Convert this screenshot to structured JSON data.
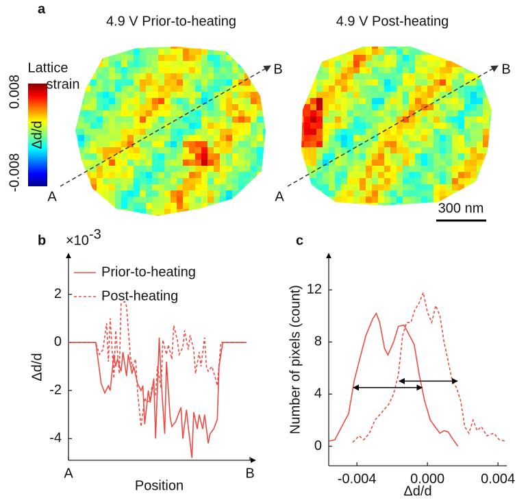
{
  "panel_a": {
    "label": "a",
    "titles": [
      "4.9 V Prior-to-heating",
      "4.9 V Post-heating"
    ],
    "colorbar": {
      "title": [
        "Lattice",
        "strain"
      ],
      "label": "Δd/d",
      "ticks": [
        -0.008,
        0.008
      ]
    },
    "line_ends": [
      "A",
      "B"
    ],
    "scale_bar": "300 nm"
  },
  "chart_data": [
    {
      "type": "line",
      "panel_label": "b",
      "xlabel": "Position",
      "ylabel": "Δd/d",
      "y_offset": {
        "base": "×10",
        "exponent": "-3"
      },
      "legend": "upper left",
      "xlim": [
        0,
        100
      ],
      "xticks": [
        {
          "value": 0,
          "label": "A"
        },
        {
          "value": 100,
          "label": "B"
        }
      ],
      "ylim": [
        -4.9,
        3.7
      ],
      "yticks": [
        -4,
        -2,
        0,
        2
      ],
      "series": [
        {
          "name": "Prior-to-heating",
          "color": "#ee4a44",
          "dash": false,
          "x": [
            0,
            15,
            18,
            20,
            22,
            23,
            25,
            26,
            27,
            29,
            30,
            32,
            33,
            35,
            36,
            38,
            40,
            41,
            42,
            44,
            45,
            47,
            48,
            50,
            51,
            53,
            54,
            56,
            57,
            59,
            60,
            62,
            63,
            65,
            66,
            68,
            69,
            71,
            72,
            74,
            75,
            77,
            78,
            80,
            82,
            83,
            85,
            98
          ],
          "values": [
            0,
            0,
            -1.7,
            -2.1,
            -1.8,
            -2.0,
            -0.5,
            -1.0,
            -0.7,
            -1.2,
            -0.4,
            -1.4,
            -0.5,
            -1.3,
            -1.0,
            -1.7,
            -2.0,
            -1.8,
            -3.4,
            -2.0,
            -2.5,
            -1.5,
            -4.0,
            0.2,
            -1.5,
            -3.8,
            -0.8,
            -3.1,
            -3.5,
            -3.3,
            -3.1,
            -2.7,
            -4.0,
            -2.8,
            -3.5,
            -4.8,
            -2.9,
            -3.6,
            -3.0,
            -3.6,
            -3.0,
            -4.2,
            -3.8,
            -3.6,
            -3.2,
            -1.0,
            0,
            0
          ]
        },
        {
          "name": "Post-heating",
          "color": "#ee4a44",
          "dash": true,
          "x": [
            0,
            15,
            17,
            19,
            21,
            22,
            23,
            25,
            26,
            28,
            29,
            31,
            32,
            34,
            35,
            37,
            38,
            40,
            42,
            43,
            45,
            46,
            48,
            49,
            51,
            52,
            54,
            55,
            57,
            58,
            60,
            61,
            63,
            64,
            66,
            67,
            69,
            70,
            72,
            73,
            75,
            76,
            77,
            79,
            81,
            82,
            84,
            98
          ],
          "values": [
            0,
            0,
            -0.5,
            -0.3,
            0.8,
            -0.8,
            1.0,
            -1.5,
            0.5,
            -1.3,
            1.6,
            1.7,
            1.5,
            -0.5,
            -1.0,
            -0.7,
            -2.0,
            -3.5,
            -2.3,
            -2.5,
            -2.4,
            -1.8,
            -2.2,
            -1.0,
            -1.9,
            0.1,
            -0.5,
            -0.1,
            -0.7,
            0.7,
            0.1,
            -0.5,
            -0.2,
            0.5,
            -0.3,
            0.3,
            -0.3,
            -1.3,
            -0.4,
            -1.0,
            0.2,
            -1.0,
            -1.2,
            -1.0,
            -1.5,
            -1.8,
            0,
            0
          ]
        }
      ]
    },
    {
      "type": "line",
      "panel_label": "c",
      "xlabel": "Δd/d",
      "ylabel": "Number of pixels (count)",
      "xlim": [
        -0.0056,
        0.0045
      ],
      "xticks": [
        -0.004,
        {
          "value": 0,
          "label": "0.000"
        },
        0.004
      ],
      "ylim": [
        -1.5,
        14.8
      ],
      "yticks": [
        0,
        4,
        8,
        12
      ],
      "series": [
        {
          "name": null,
          "color": "#ee4a44",
          "dash": false,
          "x": [
            -0.00557,
            -0.00525,
            -0.00486,
            -0.00447,
            -0.00416,
            -0.00388,
            -0.00349,
            -0.0031,
            -0.0029,
            -0.00271,
            -0.00243,
            -0.00224,
            -0.00192,
            -0.00165,
            -0.00133,
            -0.00102,
            -0.00075,
            -0.00047,
            -0.00016,
            0.00016,
            0.00043,
            0.00071,
            0.00094,
            0.00118,
            0.00141,
            0.00173
          ],
          "values": [
            0.4,
            0.5,
            1.5,
            2.5,
            5,
            6.5,
            8.5,
            9.8,
            10.2,
            9.5,
            7.5,
            7.0,
            8,
            9.2,
            9.3,
            8.5,
            7.8,
            5.5,
            3.5,
            2.0,
            1.5,
            1.0,
            1.2,
            1.1,
            0.6,
            0.0
          ]
        },
        {
          "name": null,
          "color": "#ee4a44",
          "dash": true,
          "x": [
            -0.00424,
            -0.00388,
            -0.00361,
            -0.00329,
            -0.00298,
            -0.00259,
            -0.0022,
            -0.00192,
            -0.00165,
            -0.00141,
            -0.00118,
            -0.00094,
            -0.00071,
            -0.00047,
            -0.00024,
            0,
            0.00024,
            0.00047,
            0.00071,
            0.00094,
            0.00118,
            0.00141,
            0.00165,
            0.00188,
            0.00212,
            0.00235,
            0.00259,
            0.00282,
            0.00306,
            0.00337,
            0.00376,
            0.00408,
            0.00439
          ],
          "values": [
            0.3,
            0.8,
            0.5,
            1.0,
            2.0,
            2.6,
            3.2,
            4.0,
            5.5,
            8.5,
            9.5,
            9.5,
            10.5,
            11.0,
            11.8,
            10.3,
            9.5,
            10.8,
            10.0,
            8.0,
            6.5,
            5.0,
            4.5,
            3.5,
            1.5,
            1.0,
            2.0,
            1.2,
            1.5,
            0.8,
            1.0,
            0.5,
            0.4
          ]
        }
      ],
      "arrows": [
        {
          "x0": -0.0042,
          "x1": -0.0003,
          "y": 4.5
        },
        {
          "x0": -0.0016,
          "x1": 0.0017,
          "y": 5
        }
      ]
    }
  ]
}
